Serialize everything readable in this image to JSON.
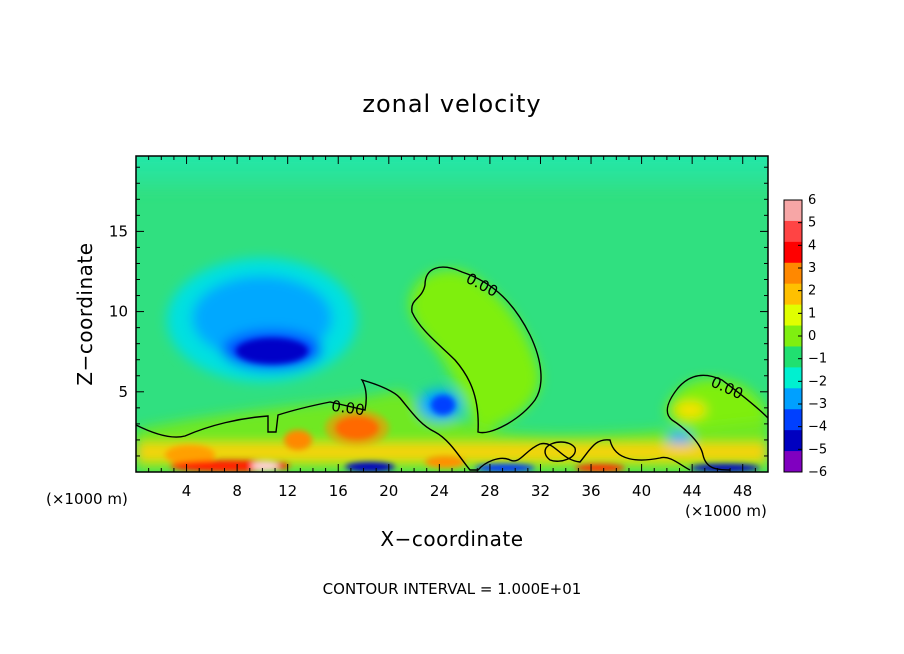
{
  "chart_data": {
    "type": "heatmap",
    "title": "zonal velocity",
    "xlabel": "X−coordinate",
    "ylabel": "Z−coordinate",
    "x_unit_left": "(×1000 m)",
    "x_unit_right": "(×1000 m)",
    "xlim": [
      0,
      50
    ],
    "ylim": [
      0,
      19.7
    ],
    "x_ticks": [
      4,
      8,
      12,
      16,
      20,
      24,
      28,
      32,
      36,
      40,
      44,
      48
    ],
    "y_ticks": [
      5,
      10,
      15
    ],
    "colorbar": {
      "levels": [
        6,
        5,
        4,
        3,
        2,
        1,
        0,
        -1,
        -2,
        -3,
        -4,
        -5,
        -6
      ],
      "labels": [
        "6",
        "5",
        "4",
        "3",
        "2",
        "1",
        "0",
        "−1",
        "−2",
        "−3",
        "−4",
        "−5",
        "−6"
      ],
      "colors": [
        "#f7a6a6",
        "#ff4444",
        "#ff0000",
        "#ff8800",
        "#ffc000",
        "#e0ff00",
        "#7fef10",
        "#20e070",
        "#00f0d0",
        "#00a0ff",
        "#0040ff",
        "#0000c0",
        "#8000c0"
      ]
    },
    "background_value": -0.6,
    "features": [
      {
        "name": "blue core",
        "x": 10.5,
        "z": 7.8,
        "value": -5
      },
      {
        "name": "upper blue region",
        "x": 11.5,
        "z": 10.5,
        "value": -3
      },
      {
        "name": "blue spot",
        "x": 24.5,
        "z": 4.3,
        "value": -4
      },
      {
        "name": "positive lobe",
        "x": 27,
        "z": 8.5,
        "value": 0.6
      },
      {
        "name": "red patch",
        "x": 17.5,
        "z": 2.8,
        "value": 4
      },
      {
        "name": "right lobe",
        "x": 45,
        "z": 3.5,
        "value": 1.5
      }
    ],
    "contours": [
      {
        "level": 0,
        "label": "0.00"
      },
      {
        "level": 0,
        "label": "0.00"
      },
      {
        "level": 0,
        "label": "0.00"
      }
    ],
    "footer": "CONTOUR INTERVAL = 1.000E+01"
  }
}
